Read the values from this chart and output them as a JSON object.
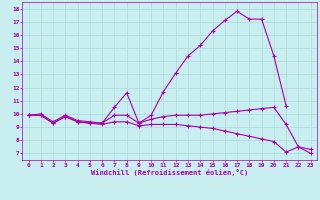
{
  "xlabel": "Windchill (Refroidissement éolien,°C)",
  "x_ticks": [
    0,
    1,
    2,
    3,
    4,
    5,
    6,
    7,
    8,
    9,
    10,
    11,
    12,
    13,
    14,
    15,
    16,
    17,
    18,
    19,
    20,
    21,
    22,
    23
  ],
  "ylim": [
    6.5,
    18.5
  ],
  "xlim": [
    -0.5,
    23.5
  ],
  "yticks": [
    7,
    8,
    9,
    10,
    11,
    12,
    13,
    14,
    15,
    16,
    17,
    18
  ],
  "bg_color": "#c8eef0",
  "line_color": "#aa00aa",
  "grid_color": "#b0dede",
  "series": [
    [
      9.9,
      10.0,
      9.4,
      9.9,
      9.5,
      9.4,
      9.3,
      10.5,
      11.6,
      9.3,
      9.9,
      11.7,
      13.1,
      14.4,
      15.2,
      16.3,
      17.1,
      17.8,
      17.2,
      17.2,
      14.4,
      10.6,
      null,
      null
    ],
    [
      9.9,
      9.9,
      9.3,
      9.8,
      9.4,
      9.3,
      9.3,
      9.9,
      9.9,
      9.3,
      9.6,
      9.8,
      9.9,
      9.9,
      9.9,
      10.0,
      10.1,
      10.2,
      10.3,
      10.4,
      10.5,
      9.2,
      7.5,
      7.3
    ],
    [
      9.9,
      9.9,
      9.3,
      9.8,
      9.4,
      9.3,
      9.2,
      9.4,
      9.4,
      9.1,
      9.2,
      9.2,
      9.2,
      9.1,
      9.0,
      8.9,
      8.7,
      8.5,
      8.3,
      8.1,
      7.9,
      7.1,
      7.5,
      7.0
    ]
  ]
}
